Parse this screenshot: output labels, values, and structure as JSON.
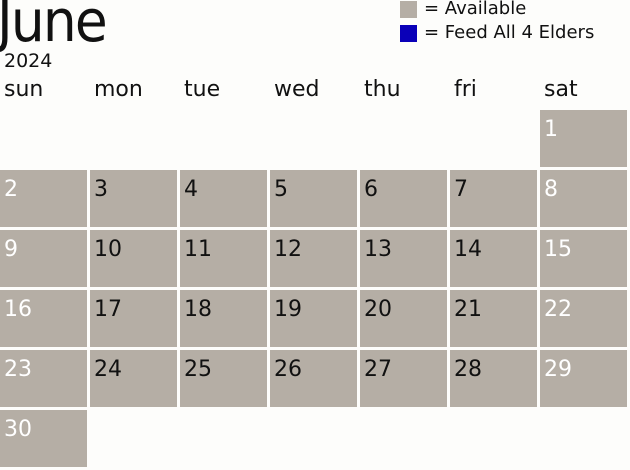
{
  "header": {
    "month": "June",
    "year": "2024"
  },
  "legend": [
    {
      "label": "= Available",
      "color": "#b5aea5"
    },
    {
      "label": "= Feed All 4 Elders",
      "color": "#0a00b8"
    }
  ],
  "weekdays": [
    "sun",
    "mon",
    "tue",
    "wed",
    "thu",
    "fri",
    "sat"
  ],
  "first_weekday_index": 6,
  "days": [
    "1",
    "2",
    "3",
    "4",
    "5",
    "6",
    "7",
    "8",
    "9",
    "10",
    "11",
    "12",
    "13",
    "14",
    "15",
    "16",
    "17",
    "18",
    "19",
    "20",
    "21",
    "22",
    "23",
    "24",
    "25",
    "26",
    "27",
    "28",
    "29",
    "30"
  ],
  "colors": {
    "available": "#b5aea5",
    "feed": "#0a00b8",
    "weekend_text": "#ffffff"
  }
}
